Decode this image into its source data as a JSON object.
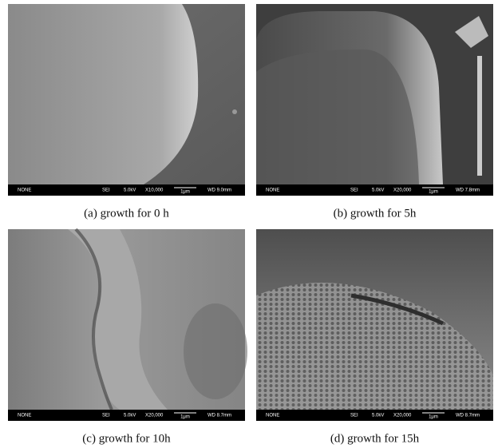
{
  "panels": [
    {
      "caption": "(a) growth for 0 h",
      "bar": {
        "label": "NONE",
        "detector": "SEI",
        "voltage": "5.0kV",
        "magnification": "X10,000",
        "scale": "1μm",
        "wd": "WD 9.0mm"
      }
    },
    {
      "caption": "(b) growth for 5h",
      "bar": {
        "label": "NONE",
        "detector": "SEI",
        "voltage": "5.0kV",
        "magnification": "X20,000",
        "scale": "1μm",
        "wd": "WD 7.8mm"
      }
    },
    {
      "caption": "(c) growth for 10h",
      "bar": {
        "label": "NONE",
        "detector": "SEI",
        "voltage": "5.0kV",
        "magnification": "X20,000",
        "scale": "1μm",
        "wd": "WD 8.7mm"
      }
    },
    {
      "caption": "(d) growth for 15h",
      "bar": {
        "label": "NONE",
        "detector": "SEI",
        "voltage": "5.0kV",
        "magnification": "X20,000",
        "scale": "1μm",
        "wd": "WD 8.7mm"
      }
    }
  ]
}
